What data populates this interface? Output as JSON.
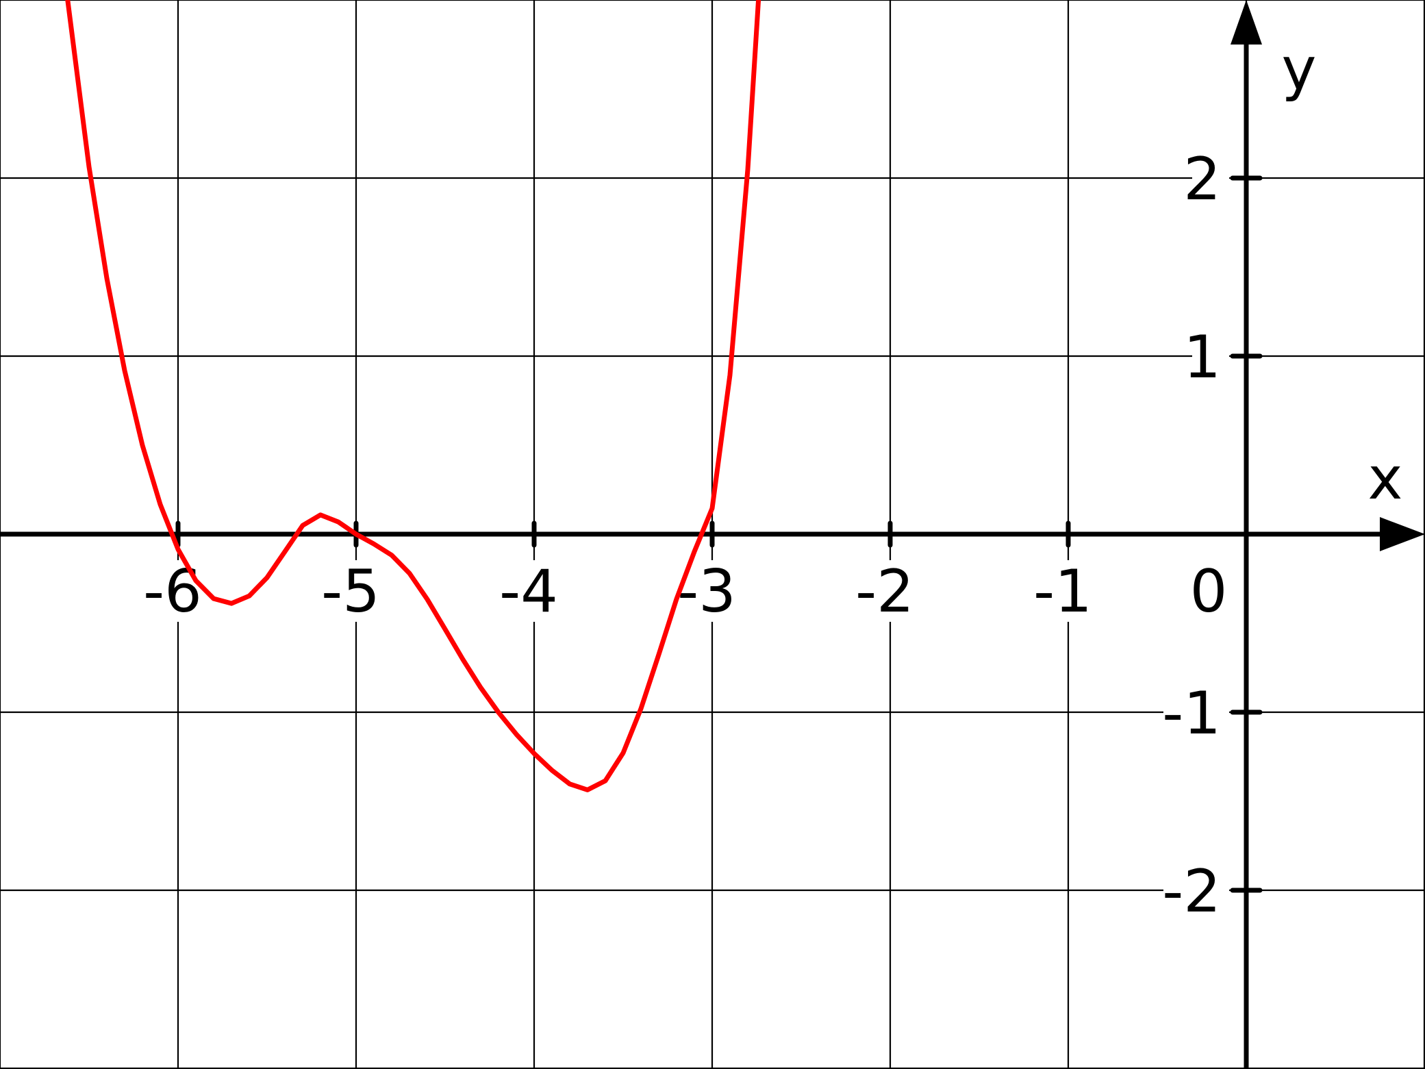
{
  "chart_data": {
    "type": "line",
    "xlabel": "x",
    "ylabel": "y",
    "origin_label": "0",
    "xlim": [
      -7,
      1
    ],
    "ylim": [
      -3,
      3
    ],
    "grid": true,
    "x_ticks": [
      -6,
      -5,
      -4,
      -3,
      -2,
      -1
    ],
    "x_tick_labels": [
      "-6",
      "-5",
      "-4",
      "-3",
      "-2",
      "-1"
    ],
    "y_ticks": [
      2,
      1,
      -1,
      -2
    ],
    "y_tick_labels": [
      "2",
      "1",
      "-1",
      "-2"
    ],
    "series": [
      {
        "color": "#ff0000",
        "x": [
          -6.62,
          -6.5,
          -6.4,
          -6.3,
          -6.2,
          -6.1,
          -6.0,
          -5.9,
          -5.8,
          -5.7,
          -5.6,
          -5.5,
          -5.4,
          -5.3,
          -5.2,
          -5.1,
          -5.0,
          -4.9,
          -4.8,
          -4.7,
          -4.6,
          -4.5,
          -4.4,
          -4.3,
          -4.2,
          -4.1,
          -4.0,
          -3.9,
          -3.8,
          -3.7,
          -3.6,
          -3.5,
          -3.4,
          -3.3,
          -3.2,
          -3.1,
          -3.0,
          -2.9,
          -2.8,
          -2.74
        ],
        "y": [
          3.0,
          2.063,
          1.437,
          0.919,
          0.499,
          0.167,
          -0.085,
          -0.261,
          -0.362,
          -0.389,
          -0.347,
          -0.244,
          -0.098,
          0.049,
          0.108,
          0.069,
          0.0,
          -0.055,
          -0.118,
          -0.22,
          -0.366,
          -0.534,
          -0.704,
          -0.862,
          -1.001,
          -1.124,
          -1.232,
          -1.326,
          -1.403,
          -1.436,
          -1.385,
          -1.229,
          -0.98,
          -0.676,
          -0.364,
          -0.098,
          0.145,
          0.894,
          2.049,
          3.0
        ]
      }
    ]
  }
}
